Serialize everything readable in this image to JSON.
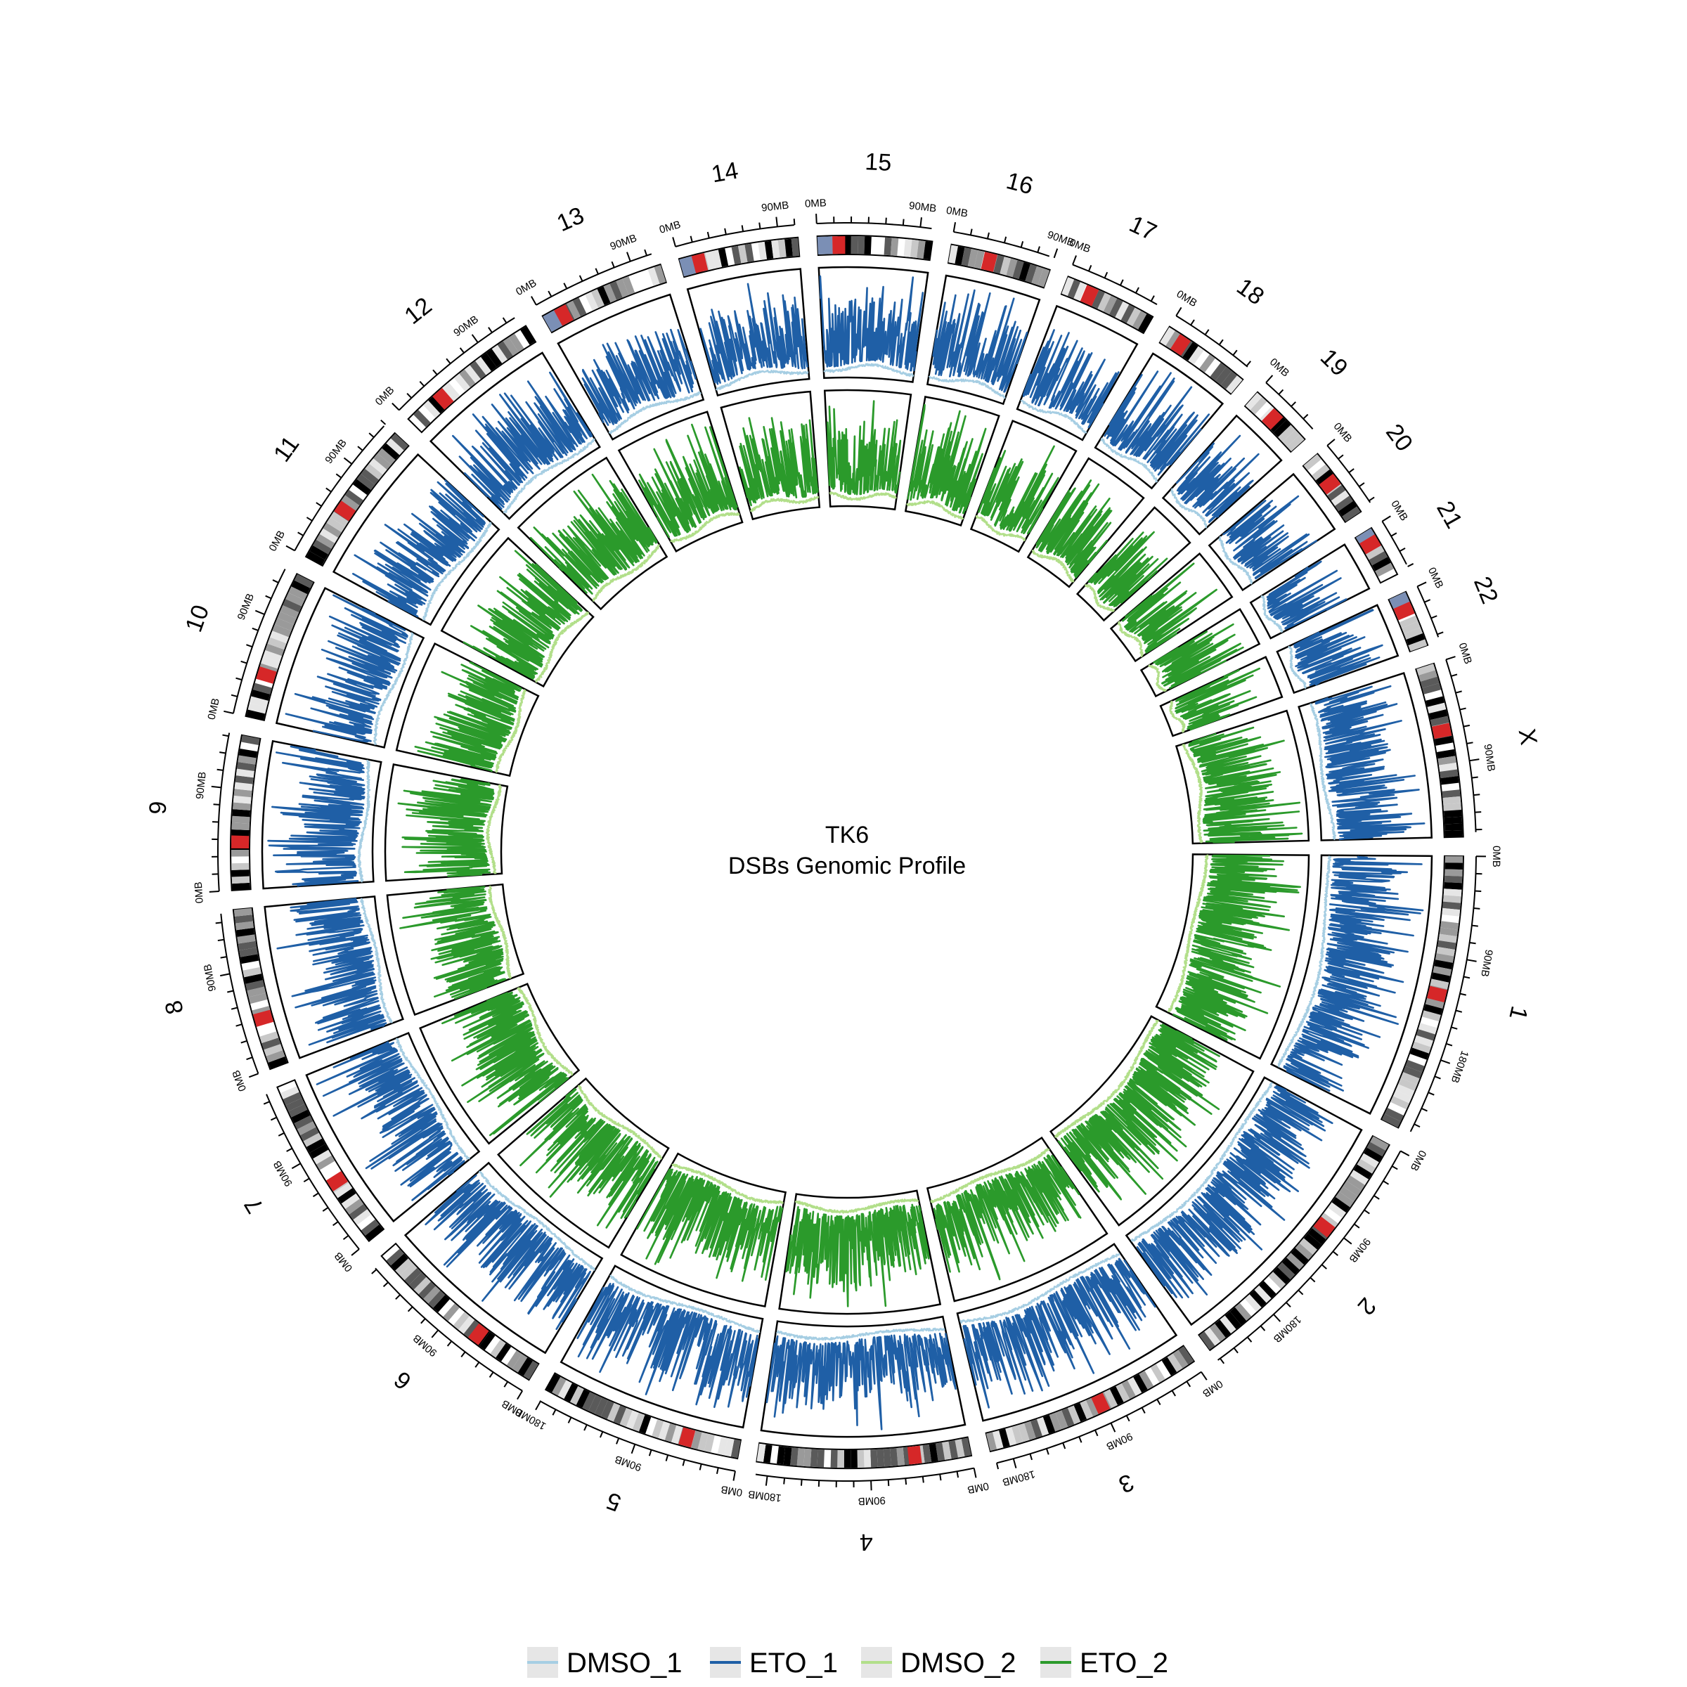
{
  "title": "TK6",
  "subtitle": "DSBs Genomic Profile",
  "chart_data": {
    "type": "circos",
    "genome": "human",
    "tick_unit": "MB",
    "tick_label_step_mb": 90,
    "chromosomes": [
      {
        "name": "1",
        "length_mb": 249,
        "centromere_mb": 125
      },
      {
        "name": "2",
        "length_mb": 243,
        "centromere_mb": 93
      },
      {
        "name": "3",
        "length_mb": 198,
        "centromere_mb": 91
      },
      {
        "name": "4",
        "length_mb": 191,
        "centromere_mb": 50
      },
      {
        "name": "5",
        "length_mb": 181,
        "centromere_mb": 48
      },
      {
        "name": "6",
        "length_mb": 171,
        "centromere_mb": 60
      },
      {
        "name": "7",
        "length_mb": 159,
        "centromere_mb": 60
      },
      {
        "name": "8",
        "length_mb": 145,
        "centromere_mb": 45
      },
      {
        "name": "9",
        "length_mb": 138,
        "centromere_mb": 43
      },
      {
        "name": "10",
        "length_mb": 134,
        "centromere_mb": 40
      },
      {
        "name": "11",
        "length_mb": 135,
        "centromere_mb": 53
      },
      {
        "name": "12",
        "length_mb": 133,
        "centromere_mb": 35
      },
      {
        "name": "13",
        "length_mb": 114,
        "centromere_mb": 17
      },
      {
        "name": "14",
        "length_mb": 107,
        "centromere_mb": 17
      },
      {
        "name": "15",
        "length_mb": 102,
        "centromere_mb": 19
      },
      {
        "name": "16",
        "length_mb": 90,
        "centromere_mb": 36
      },
      {
        "name": "17",
        "length_mb": 83,
        "centromere_mb": 24
      },
      {
        "name": "18",
        "length_mb": 80,
        "centromere_mb": 17
      },
      {
        "name": "19",
        "length_mb": 59,
        "centromere_mb": 26
      },
      {
        "name": "20",
        "length_mb": 64,
        "centromere_mb": 28
      },
      {
        "name": "21",
        "length_mb": 47,
        "centromere_mb": 12
      },
      {
        "name": "22",
        "length_mb": 51,
        "centromere_mb": 15
      },
      {
        "name": "X",
        "length_mb": 156,
        "centromere_mb": 60
      }
    ],
    "tracks": [
      {
        "name": "ETO_1",
        "control": "DMSO_1",
        "position": "outer"
      },
      {
        "name": "ETO_2",
        "control": "DMSO_2",
        "position": "inner"
      }
    ],
    "series": [
      {
        "name": "DMSO_1",
        "color": "#a6cee3"
      },
      {
        "name": "ETO_1",
        "color": "#1f5fa6"
      },
      {
        "name": "DMSO_2",
        "color": "#b2df8a"
      },
      {
        "name": "ETO_2",
        "color": "#2b9a2b"
      }
    ],
    "legend_position": "bottom",
    "colors": {
      "centromere": "#d62728",
      "acrocentric": "#7b8fb5",
      "panel_border": "#000000"
    }
  }
}
